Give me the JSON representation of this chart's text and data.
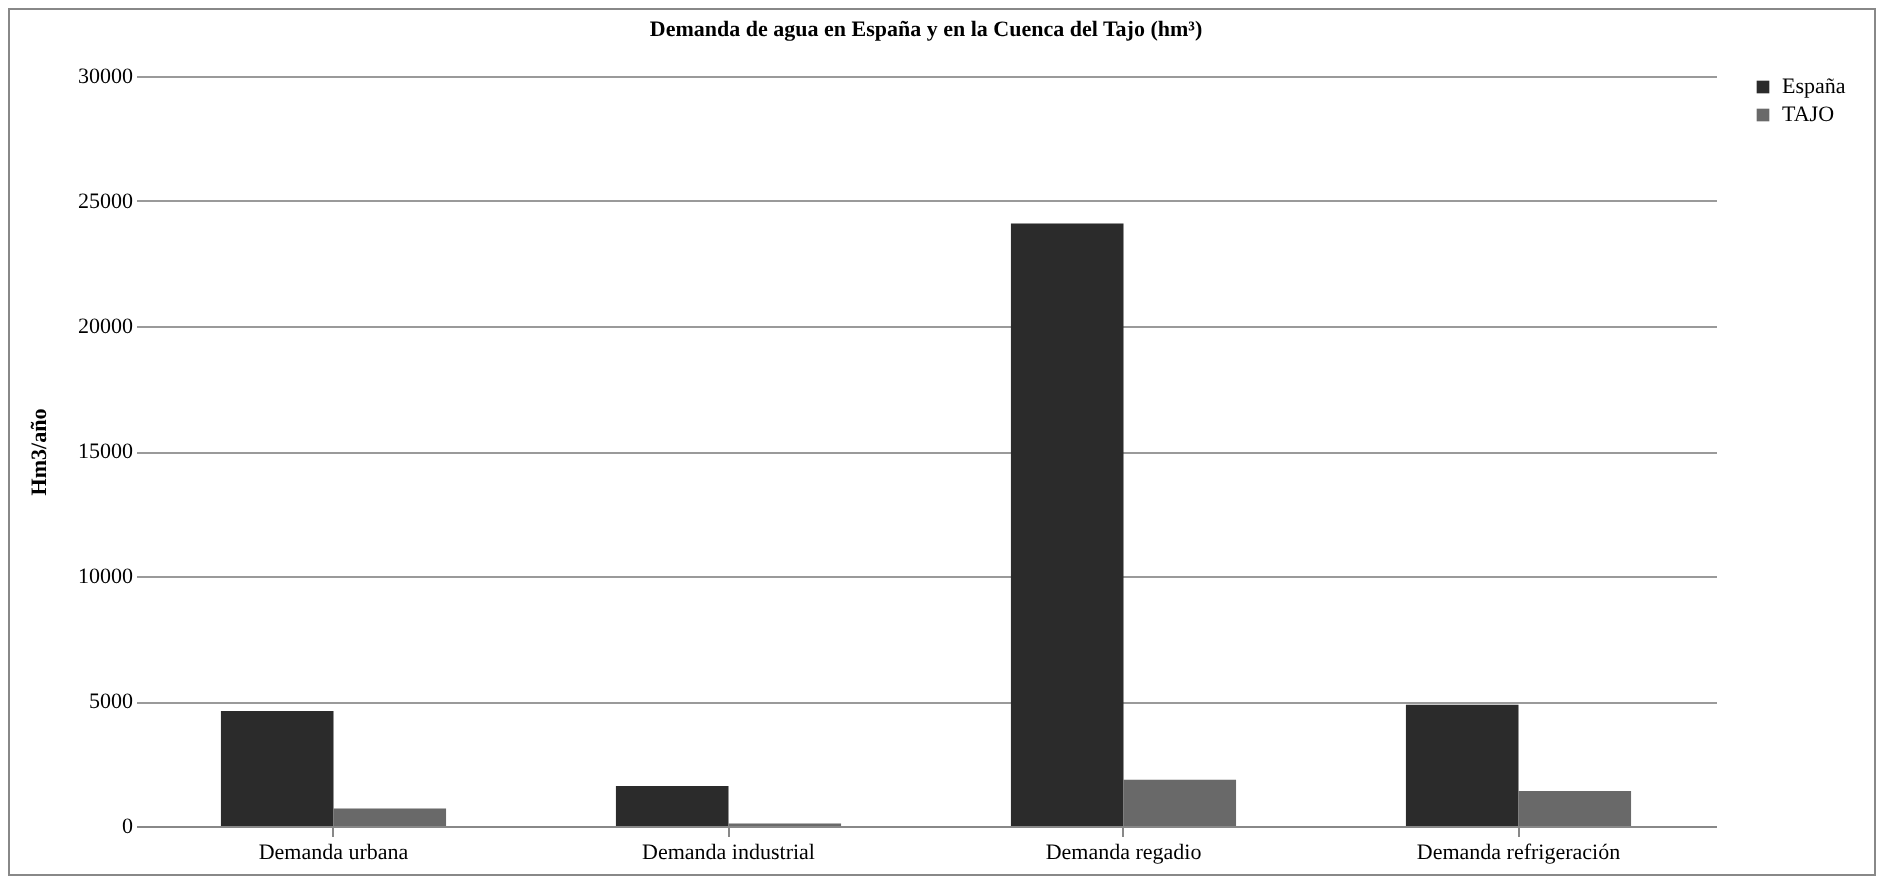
{
  "chart_data": {
    "type": "bar",
    "title": "Demanda de agua en España y en la Cuenca del Tajo (hm³)",
    "ylabel": "Hm3/año",
    "categories": [
      "Demanda urbana",
      "Demanda industrial",
      "Demanda regadio",
      "Demanda refrigeración"
    ],
    "series": [
      {
        "name": "España",
        "color": "#2b2b2b",
        "values": [
          4600,
          1600,
          24100,
          4850
        ]
      },
      {
        "name": "TAJO",
        "color": "#696969",
        "values": [
          700,
          100,
          1850,
          1400
        ]
      }
    ],
    "ylim": [
      0,
      30000
    ],
    "yticks": [
      0,
      5000,
      10000,
      15000,
      20000,
      25000,
      30000
    ],
    "grid": "y",
    "legend": "right"
  }
}
